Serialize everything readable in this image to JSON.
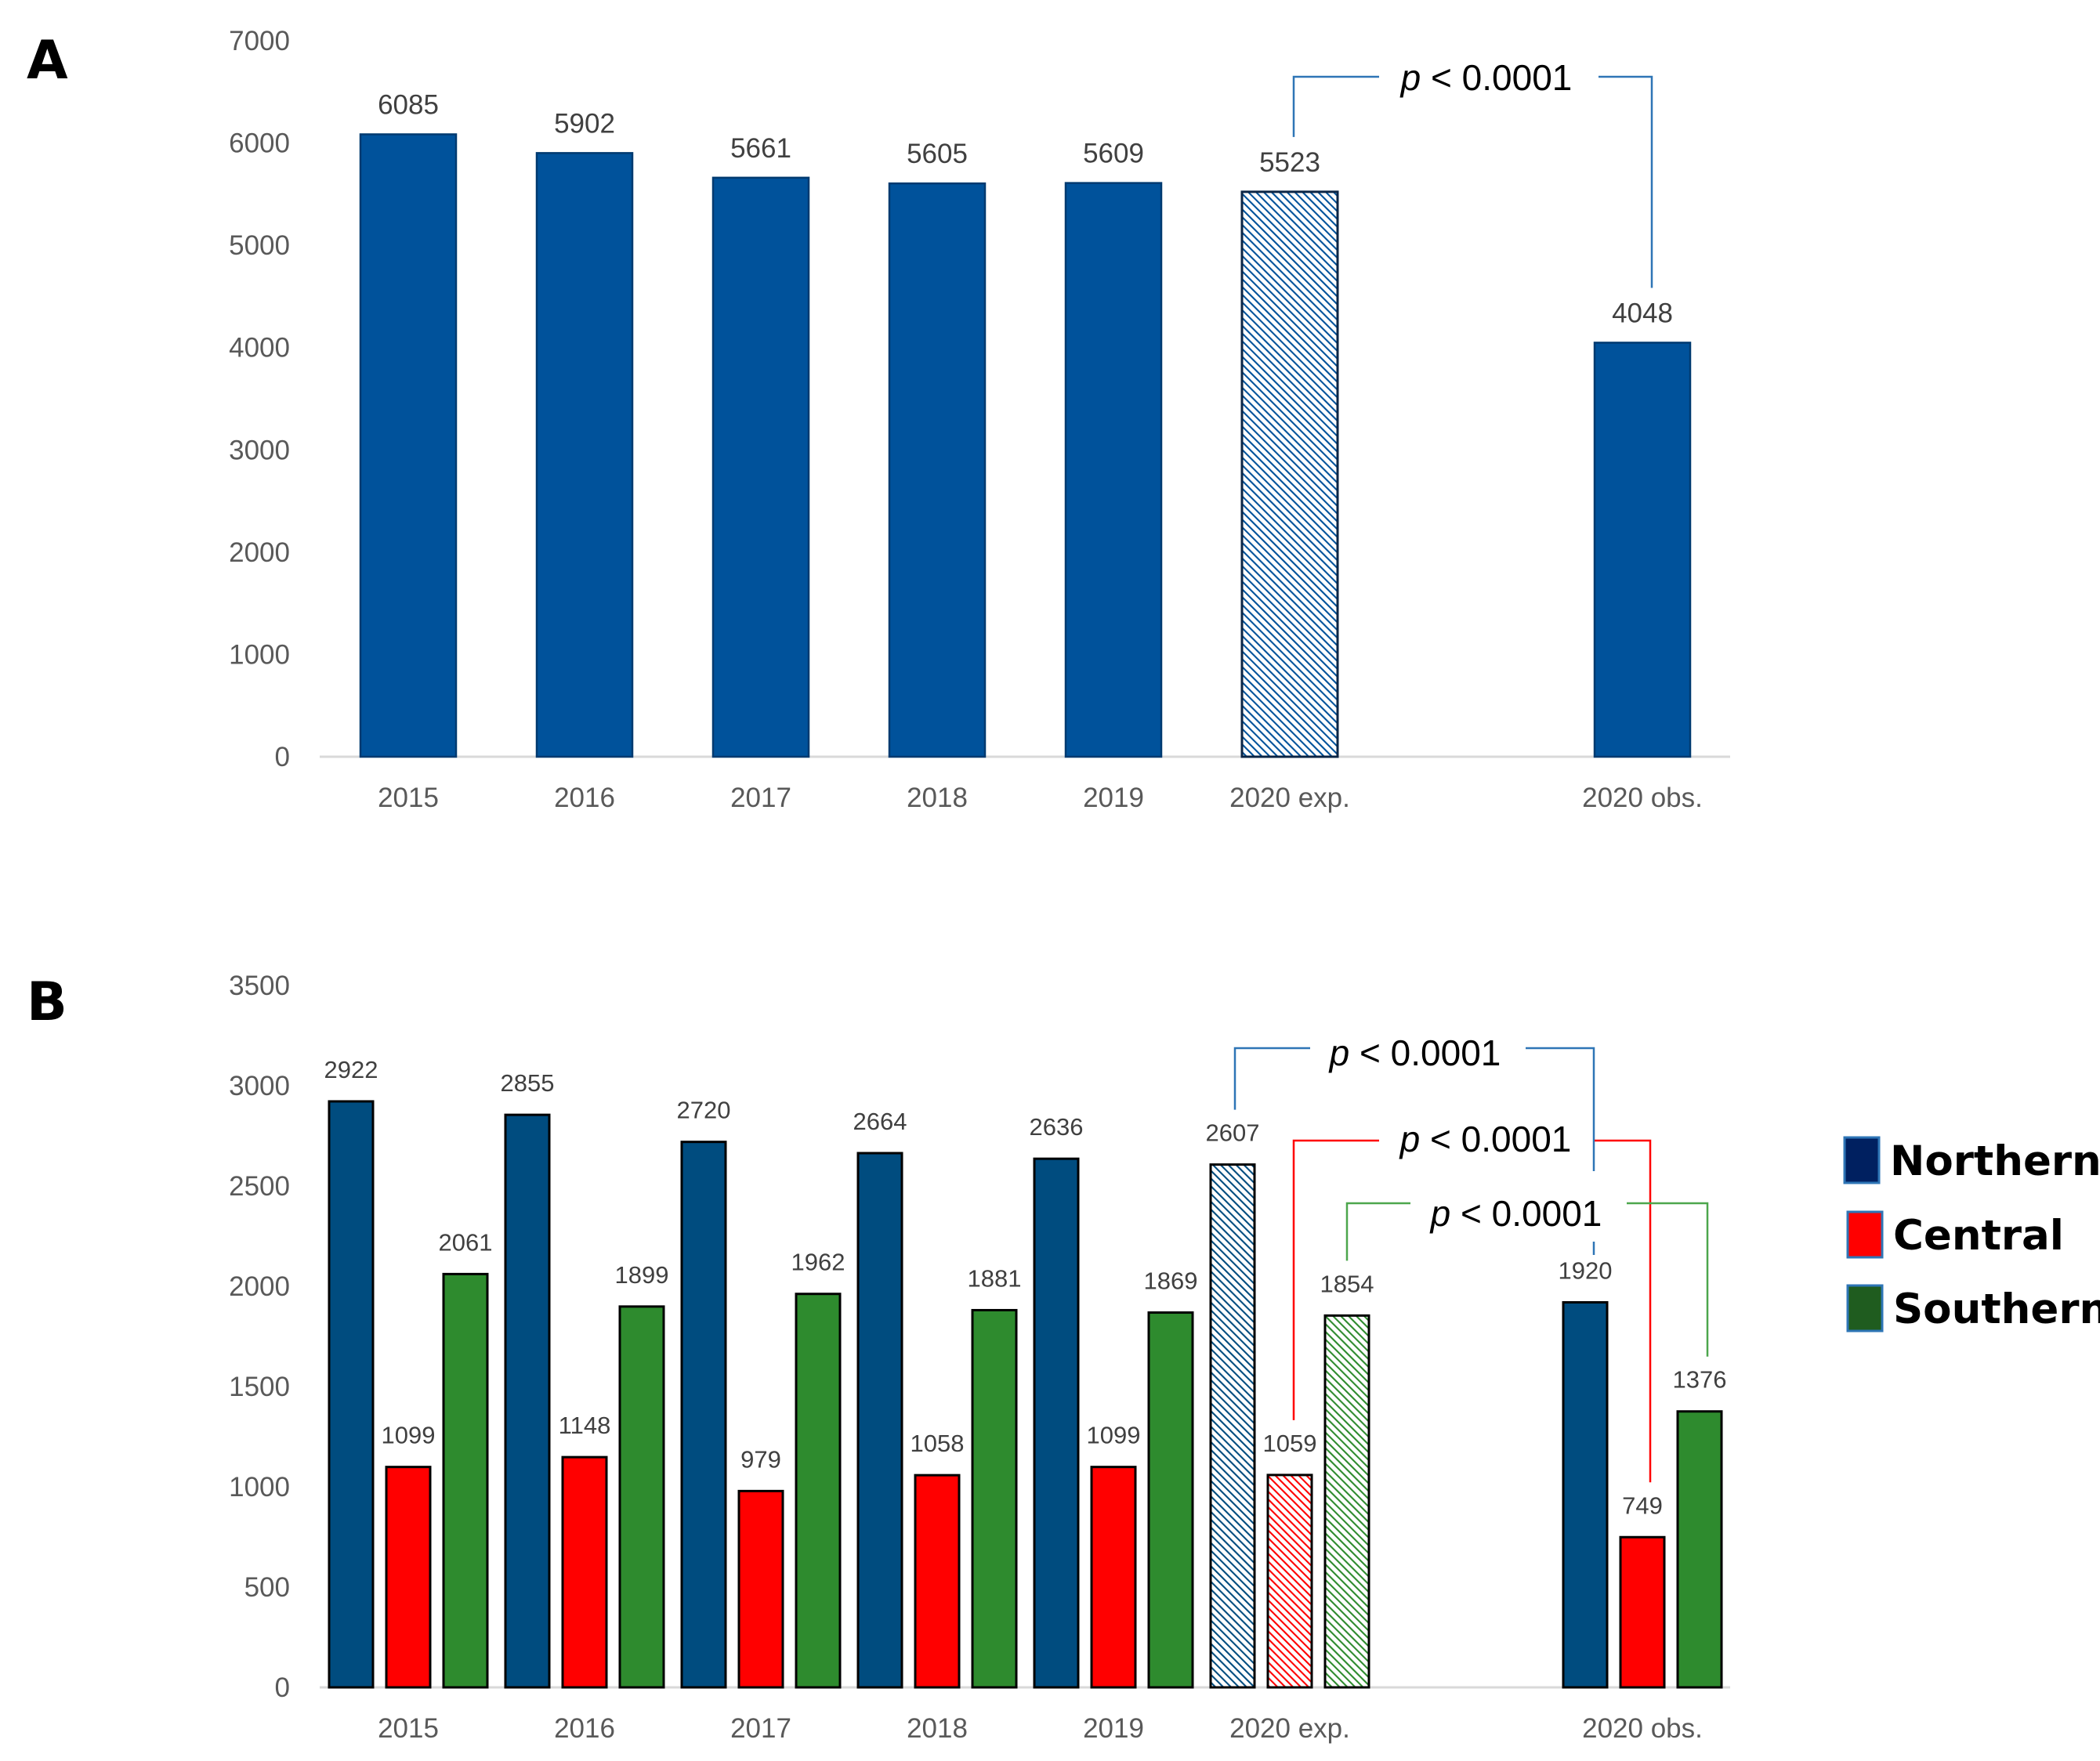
{
  "panels": {
    "a": {
      "letter": "A"
    },
    "b": {
      "letter": "B"
    }
  },
  "colors": {
    "panel_a_bar": "#00529B",
    "northern": "#004C7F",
    "central": "#FF0000",
    "southern": "#2E8B2E",
    "legend_northern": "#002060",
    "legend_central": "#FF0000",
    "legend_southern": "#1F5C1F",
    "bracket_blue": "#2E75B6",
    "bracket_red": "#FF0000",
    "bracket_green": "#4CA64C"
  },
  "chart_data": [
    {
      "type": "bar",
      "panel": "A",
      "categories": [
        "2015",
        "2016",
        "2017",
        "2018",
        "2019",
        "2020 exp.",
        "2020 obs."
      ],
      "values": [
        6085,
        5902,
        5661,
        5605,
        5609,
        5523,
        4048
      ],
      "hatched": [
        false,
        false,
        false,
        false,
        false,
        true,
        false
      ],
      "yticks": [
        0,
        1000,
        2000,
        3000,
        4000,
        5000,
        6000,
        7000
      ],
      "ylim": [
        0,
        7000
      ],
      "annotations": [
        {
          "text_p": "p",
          "text_rest": " < 0.0001",
          "from": "2020 exp.",
          "to": "2020 obs."
        }
      ]
    },
    {
      "type": "bar",
      "panel": "B",
      "categories": [
        "2015",
        "2016",
        "2017",
        "2018",
        "2019",
        "2020 exp.",
        "2020 obs."
      ],
      "series": [
        {
          "name": "Northern",
          "values": [
            2922,
            2855,
            2720,
            2664,
            2636,
            2607,
            1920
          ]
        },
        {
          "name": "Central",
          "values": [
            1099,
            1148,
            979,
            1058,
            1099,
            1059,
            749
          ]
        },
        {
          "name": "Southern",
          "values": [
            2061,
            1899,
            1962,
            1881,
            1869,
            1854,
            1376
          ]
        }
      ],
      "hatched_category": "2020 exp.",
      "yticks": [
        0,
        500,
        1000,
        1500,
        2000,
        2500,
        3000,
        3500
      ],
      "ylim": [
        0,
        3500
      ],
      "annotations": [
        {
          "series": "Northern",
          "text_p": "p",
          "text_rest": " < 0.0001"
        },
        {
          "series": "Central",
          "text_p": "p",
          "text_rest": " < 0.0001"
        },
        {
          "series": "Southern",
          "text_p": "p",
          "text_rest": " < 0.0001"
        }
      ],
      "legend": [
        "Northern",
        "Central",
        "Southern"
      ]
    }
  ]
}
